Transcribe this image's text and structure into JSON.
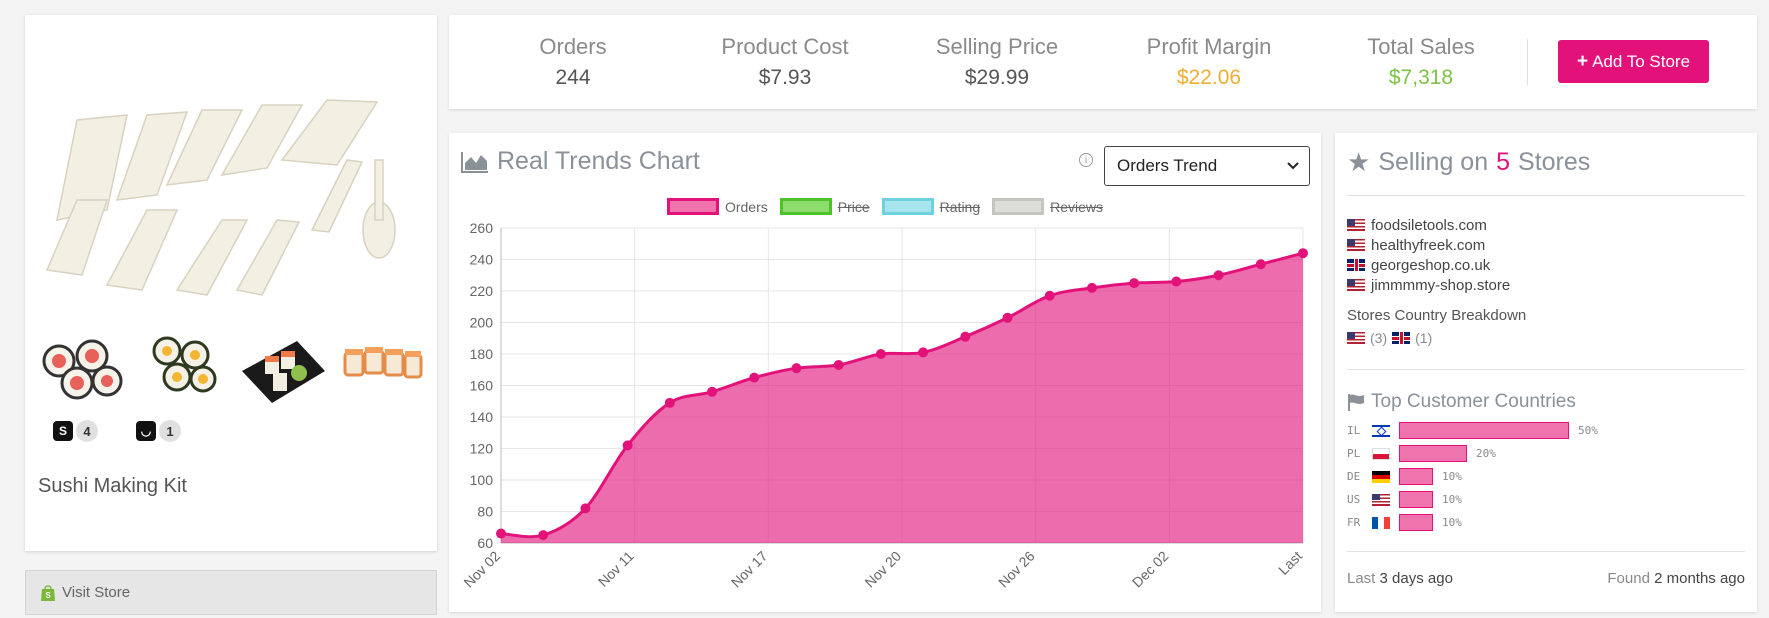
{
  "product": {
    "title": "Sushi Making Kit",
    "badges": [
      {
        "icon": "shopify-bag-icon",
        "glyph": "S",
        "count": "4"
      },
      {
        "icon": "store-bag-icon",
        "glyph": "◡",
        "count": "1"
      }
    ],
    "visit_store_label": "Visit Store"
  },
  "stats": [
    {
      "label": "Orders",
      "value": "244",
      "color": "#555555"
    },
    {
      "label": "Product Cost",
      "value": "$7.93",
      "color": "#555555"
    },
    {
      "label": "Selling Price",
      "value": "$29.99",
      "color": "#555555"
    },
    {
      "label": "Profit Margin",
      "value": "$22.06",
      "color": "#f0ad33"
    },
    {
      "label": "Total Sales",
      "value": "$7,318",
      "color": "#7dc242"
    }
  ],
  "add_button_label": "Add To Store",
  "trends": {
    "title": "Real Trends Chart",
    "info_glyph": "i",
    "select_value": "Orders Trend",
    "legend": [
      {
        "label": "Orders",
        "fill": "#ef73ac",
        "border": "#e2127a",
        "active": true
      },
      {
        "label": "Price",
        "fill": "#8fdc6e",
        "border": "#4fc22a",
        "active": false
      },
      {
        "label": "Rating",
        "fill": "#a8e4ee",
        "border": "#6fd0e0",
        "active": false
      },
      {
        "label": "Reviews",
        "fill": "#dcdcd8",
        "border": "#c5c5bf",
        "active": false
      }
    ]
  },
  "chart_data": {
    "type": "area",
    "series": [
      {
        "name": "Orders",
        "values": [
          66,
          65,
          82,
          122,
          149,
          156,
          165,
          171,
          173,
          180,
          181,
          191,
          203,
          217,
          222,
          225,
          226,
          230,
          237,
          244
        ]
      }
    ],
    "x_ticks": [
      "Nov 02",
      "Nov 11",
      "Nov 17",
      "Nov 20",
      "Nov 26",
      "Dec 02",
      "Last"
    ],
    "y_ticks": [
      60,
      80,
      100,
      120,
      140,
      160,
      180,
      200,
      220,
      240,
      260
    ],
    "ylim": [
      60,
      260
    ],
    "grid": true,
    "legend_position": "top-center",
    "color": "#e2127a"
  },
  "stores": {
    "title_prefix": "Selling on",
    "count": "5",
    "title_suffix": "Stores",
    "list": [
      {
        "flag": "us",
        "name": "foodsiletools.com"
      },
      {
        "flag": "us",
        "name": "healthyfreek.com"
      },
      {
        "flag": "gb",
        "name": "georgeshop.co.uk"
      },
      {
        "flag": "us",
        "name": "jimmmmy-shop.store"
      }
    ],
    "breakdown_label": "Stores Country Breakdown",
    "breakdown": [
      {
        "flag": "us",
        "count": "(3)"
      },
      {
        "flag": "gb",
        "count": "(1)"
      }
    ],
    "top_countries_title": "Top Customer Countries",
    "top_countries": [
      {
        "code": "IL",
        "flag": "il",
        "percent": 50,
        "label": "50%"
      },
      {
        "code": "PL",
        "flag": "pl",
        "percent": 20,
        "label": "20%"
      },
      {
        "code": "DE",
        "flag": "de",
        "percent": 10,
        "label": "10%"
      },
      {
        "code": "US",
        "flag": "us",
        "percent": 10,
        "label": "10%"
      },
      {
        "code": "FR",
        "flag": "fr",
        "percent": 10,
        "label": "10%"
      }
    ],
    "last_label": "Last",
    "last_value": "3 days ago",
    "found_label": "Found",
    "found_value": "2 months ago"
  }
}
